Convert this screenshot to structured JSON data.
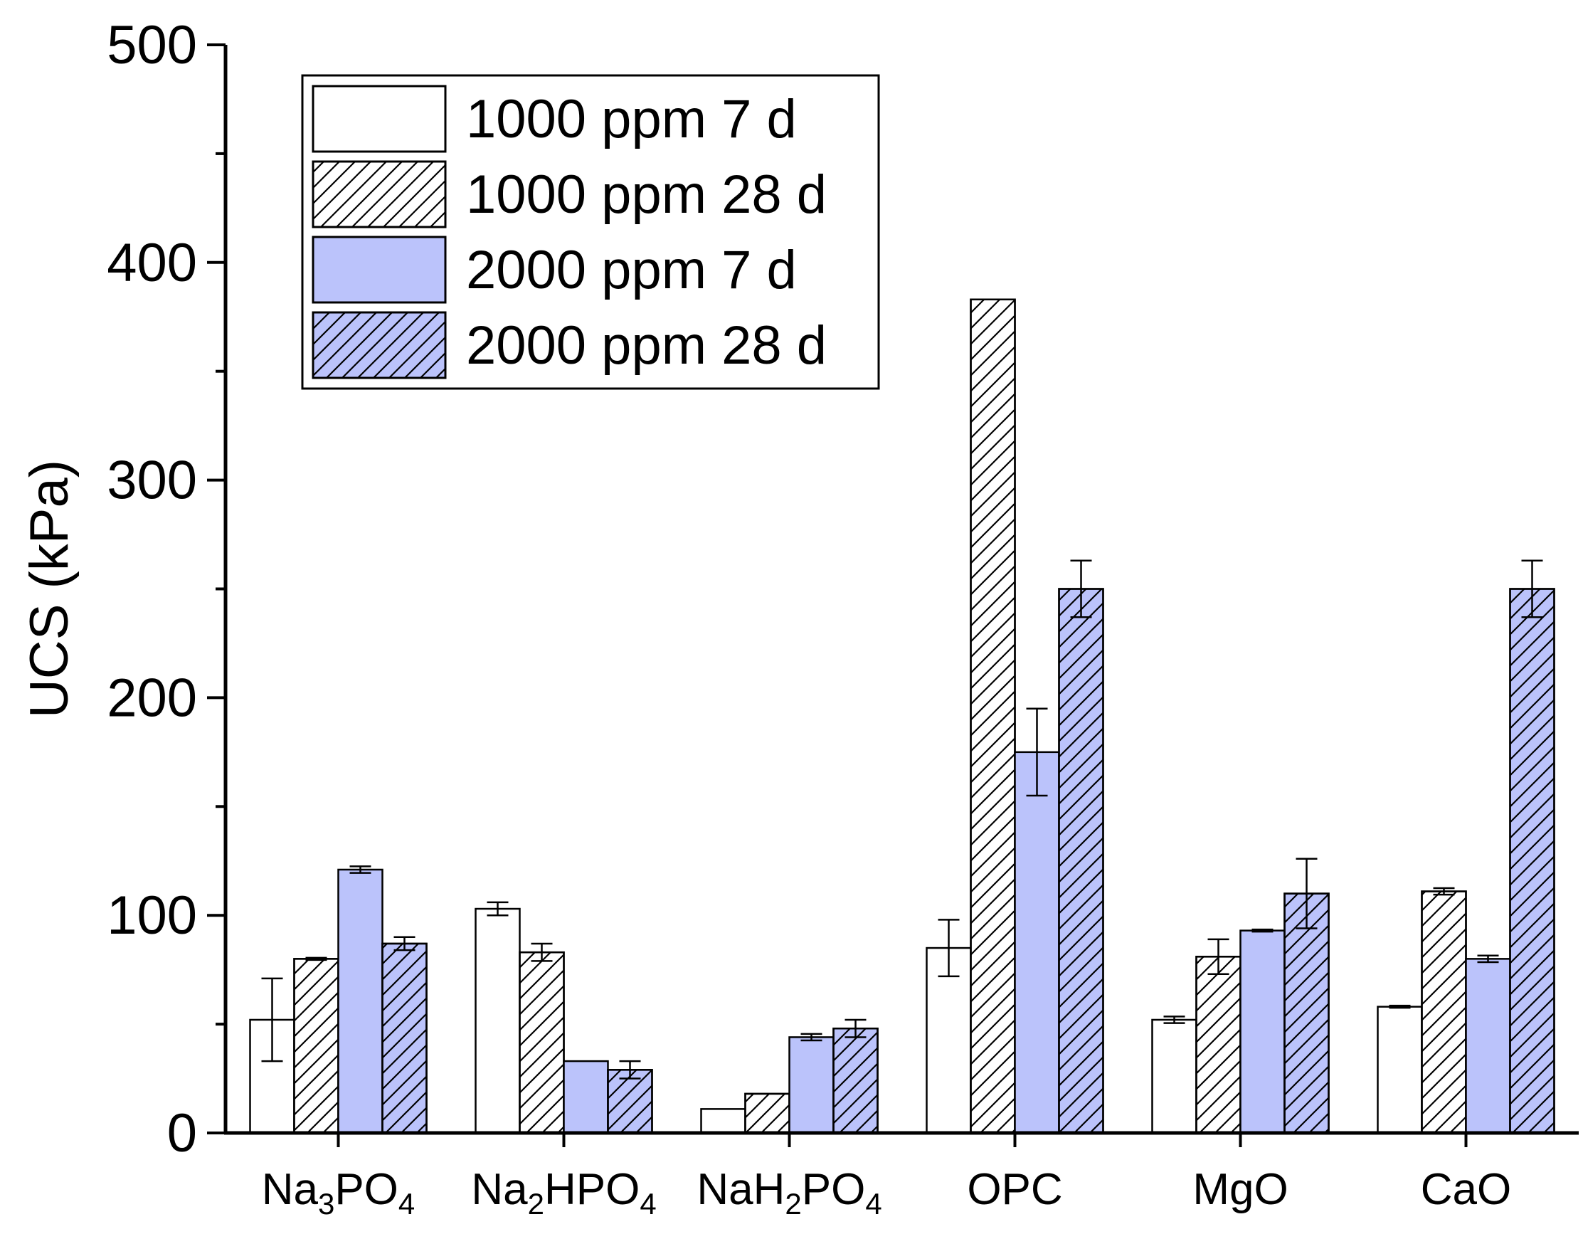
{
  "chart_data": {
    "type": "bar",
    "ylabel": "UCS (kPa)",
    "xlabel": "",
    "ylim": [
      0,
      500
    ],
    "yticks": [
      0,
      100,
      200,
      300,
      400,
      500
    ],
    "y_minor_step": 50,
    "legend_position": "top-left",
    "categories": [
      {
        "base": "Na",
        "parts": [
          [
            "Na",
            false
          ],
          [
            "3",
            true
          ],
          [
            "PO",
            false
          ],
          [
            "4",
            true
          ]
        ]
      },
      {
        "base": "Na",
        "parts": [
          [
            "Na",
            false
          ],
          [
            "2",
            true
          ],
          [
            "HPO",
            false
          ],
          [
            "4",
            true
          ]
        ]
      },
      {
        "base": "Na",
        "parts": [
          [
            "NaH",
            false
          ],
          [
            "2",
            true
          ],
          [
            "PO",
            false
          ],
          [
            "4",
            true
          ]
        ]
      },
      {
        "base": "OPC",
        "parts": [
          [
            "OPC",
            false
          ]
        ]
      },
      {
        "base": "MgO",
        "parts": [
          [
            "MgO",
            false
          ]
        ]
      },
      {
        "base": "CaO",
        "parts": [
          [
            "CaO",
            false
          ]
        ]
      }
    ],
    "category_labels": [
      "Na3PO4",
      "Na2HPO4",
      "NaH2PO4",
      "OPC",
      "MgO",
      "CaO"
    ],
    "series": [
      {
        "name": "1000 ppm 7 d",
        "fill": "#ffffff",
        "hatch": false,
        "values": [
          52,
          103,
          11,
          85,
          52,
          58
        ],
        "errors": [
          19,
          3,
          0,
          13,
          1.5,
          0.5
        ]
      },
      {
        "name": "1000 ppm 28 d",
        "fill": "#ffffff",
        "hatch": true,
        "values": [
          80,
          83,
          18,
          383,
          81,
          111
        ],
        "errors": [
          0.5,
          4,
          0,
          0,
          8,
          1.5
        ]
      },
      {
        "name": "2000 ppm 7 d",
        "fill": "#bbc3fb",
        "hatch": false,
        "values": [
          121,
          33,
          44,
          175,
          93,
          80
        ],
        "errors": [
          1.5,
          0,
          1.5,
          20,
          0.5,
          1.5
        ]
      },
      {
        "name": "2000 ppm 28 d",
        "fill": "#bbc3fb",
        "hatch": true,
        "values": [
          87,
          29,
          48,
          250,
          110,
          250
        ],
        "errors": [
          3,
          4,
          4,
          13,
          16,
          13
        ]
      }
    ],
    "grid": false
  }
}
